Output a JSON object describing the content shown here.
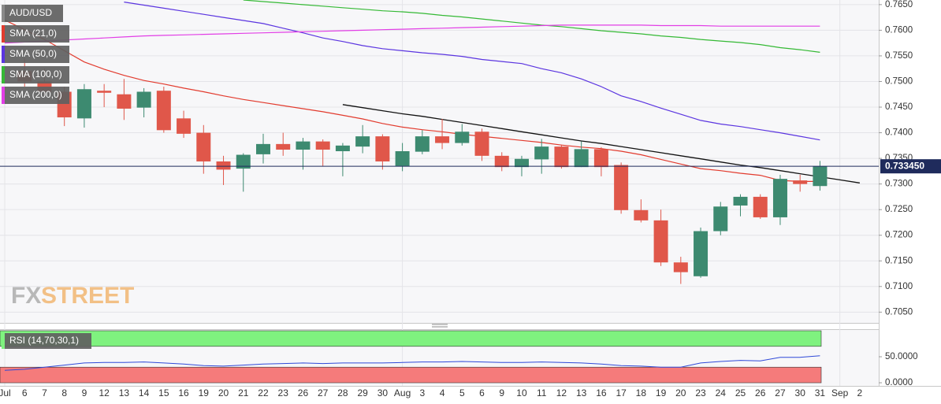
{
  "chart_data": {
    "type": "candlestick",
    "categories": [
      "Jul",
      "6",
      "7",
      "8",
      "9",
      "12",
      "13",
      "14",
      "15",
      "16",
      "19",
      "20",
      "21",
      "22",
      "23",
      "26",
      "27",
      "28",
      "29",
      "30",
      "Aug",
      "3",
      "4",
      "5",
      "6",
      "9",
      "10",
      "11",
      "12",
      "13",
      "16",
      "17",
      "18",
      "19",
      "20",
      "23",
      "24",
      "25",
      "26",
      "27",
      "30",
      "31",
      "Sep",
      "2"
    ],
    "ohlc": {
      "name": "AUD/USD",
      "up_color": "#3d8a70",
      "down_color": "#e0574a",
      "open": [
        null,
        0.752,
        0.75,
        0.748,
        0.7428,
        0.7482,
        0.7475,
        0.7449,
        0.7482,
        0.7428,
        0.74,
        0.7344,
        0.733,
        0.7358,
        0.7378,
        0.7367,
        0.7383,
        0.7364,
        0.7373,
        0.7393,
        0.7335,
        0.7363,
        0.7393,
        0.738,
        0.7402,
        0.7355,
        0.7333,
        0.7348,
        0.7373,
        0.7333,
        0.7368,
        0.7337,
        0.7249,
        0.7229,
        0.7147,
        0.712,
        0.7208,
        0.7258,
        0.7275,
        0.7235,
        0.7307,
        0.7296,
        null,
        null
      ],
      "high": [
        null,
        0.7545,
        0.7525,
        0.749,
        0.7495,
        0.7495,
        0.7505,
        0.7487,
        0.749,
        0.7443,
        0.7415,
        0.7355,
        0.736,
        0.7398,
        0.74,
        0.739,
        0.7387,
        0.738,
        0.7415,
        0.7397,
        0.738,
        0.7405,
        0.7427,
        0.7417,
        0.7408,
        0.7362,
        0.7355,
        0.7388,
        0.7377,
        0.7383,
        0.7372,
        0.7342,
        0.727,
        0.725,
        0.7158,
        0.7215,
        0.7265,
        0.728,
        0.728,
        0.7318,
        0.7318,
        0.7345,
        null,
        null
      ],
      "low": [
        null,
        0.749,
        0.747,
        0.7413,
        0.741,
        0.745,
        0.7425,
        0.743,
        0.74,
        0.739,
        0.732,
        0.7298,
        0.7285,
        0.734,
        0.7355,
        0.7328,
        0.7335,
        0.7315,
        0.736,
        0.7328,
        0.7325,
        0.7358,
        0.7368,
        0.7375,
        0.7345,
        0.7325,
        0.7315,
        0.732,
        0.733,
        0.7333,
        0.7315,
        0.7242,
        0.7225,
        0.714,
        0.7105,
        0.7117,
        0.72,
        0.7237,
        0.7232,
        0.722,
        0.7285,
        0.7287,
        null,
        null
      ],
      "close": [
        null,
        0.75,
        0.748,
        0.743,
        0.7485,
        0.7478,
        0.7447,
        0.748,
        0.7405,
        0.7398,
        0.7344,
        0.7328,
        0.7357,
        0.7378,
        0.7367,
        0.7383,
        0.7367,
        0.7375,
        0.7393,
        0.7344,
        0.7364,
        0.7393,
        0.738,
        0.7402,
        0.7355,
        0.7333,
        0.7349,
        0.7373,
        0.7333,
        0.7368,
        0.7333,
        0.7249,
        0.7229,
        0.7147,
        0.7128,
        0.7208,
        0.7256,
        0.7275,
        0.7235,
        0.731,
        0.73,
        0.7334,
        null,
        null
      ]
    },
    "series": [
      {
        "name": "SMA (21,0)",
        "color": "#e23b2e",
        "values": [
          0.762,
          0.7601,
          0.7582,
          0.756,
          0.7538,
          0.7524,
          0.7512,
          0.7502,
          0.7495,
          0.7487,
          0.748,
          0.7472,
          0.7465,
          0.7459,
          0.7453,
          0.7447,
          0.7441,
          0.7434,
          0.7427,
          0.7418,
          0.7411,
          0.7406,
          0.7402,
          0.7397,
          0.7393,
          0.7389,
          0.7385,
          0.7381,
          0.7376,
          0.7372,
          0.7369,
          0.7364,
          0.7357,
          0.7348,
          0.7339,
          0.733,
          0.7326,
          0.7321,
          0.7317,
          0.7307,
          0.7305,
          0.7305,
          null,
          null
        ]
      },
      {
        "name": "SMA (50,0)",
        "color": "#5b35e0",
        "values": [
          null,
          null,
          null,
          null,
          null,
          null,
          0.7655,
          0.7649,
          0.7643,
          0.7637,
          0.7631,
          0.7625,
          0.7619,
          0.7613,
          0.7604,
          0.7595,
          0.7585,
          0.7578,
          0.757,
          0.7564,
          0.756,
          0.7556,
          0.7553,
          0.7549,
          0.7543,
          0.7539,
          0.7535,
          0.7525,
          0.7517,
          0.7505,
          0.749,
          0.7472,
          0.7461,
          0.7448,
          0.7436,
          0.7424,
          0.7417,
          0.7412,
          0.7406,
          0.74,
          0.7393,
          0.7386,
          null,
          null
        ]
      },
      {
        "name": "SMA (100,0)",
        "color": "#35b935",
        "values": [
          null,
          null,
          null,
          null,
          null,
          null,
          null,
          null,
          null,
          null,
          null,
          null,
          0.7659,
          0.7656,
          0.7653,
          0.765,
          0.7647,
          0.7644,
          0.7641,
          0.7638,
          0.7636,
          0.7633,
          0.7629,
          0.7626,
          0.7622,
          0.7618,
          0.7614,
          0.761,
          0.7607,
          0.7603,
          0.7599,
          0.7596,
          0.7593,
          0.7589,
          0.7586,
          0.7582,
          0.7579,
          0.7576,
          0.7572,
          0.7566,
          0.7562,
          0.7557,
          null,
          null
        ]
      },
      {
        "name": "SMA (200,0)",
        "color": "#e23ee6",
        "values": [
          0.7575,
          0.7577,
          0.7579,
          0.7581,
          0.7583,
          0.7585,
          0.7587,
          0.7589,
          0.759,
          0.7591,
          0.7592,
          0.7593,
          0.7594,
          0.7595,
          0.7596,
          0.7597,
          0.7598,
          0.7599,
          0.76,
          0.7601,
          0.7602,
          0.7603,
          0.7604,
          0.7605,
          0.7606,
          0.7607,
          0.7608,
          0.7609,
          0.761,
          0.761,
          0.761,
          0.761,
          0.761,
          0.7609,
          0.7609,
          0.7609,
          0.7608,
          0.7608,
          0.7608,
          0.7608,
          0.7608,
          0.7608,
          null,
          null
        ]
      }
    ],
    "trendline": {
      "color": "#111111",
      "values": [
        null,
        null,
        null,
        null,
        null,
        null,
        null,
        null,
        null,
        null,
        null,
        null,
        null,
        null,
        null,
        null,
        null,
        0.7455,
        0.7449,
        0.7443,
        0.7437,
        0.7432,
        0.7426,
        0.742,
        0.7414,
        0.7408,
        0.7402,
        0.7396,
        0.739,
        0.7384,
        0.7379,
        0.7373,
        0.7367,
        0.7361,
        0.7355,
        0.7349,
        0.7343,
        0.7337,
        0.7332,
        0.7326,
        0.732,
        0.7314,
        0.7308,
        0.7302
      ]
    },
    "last_price": {
      "value": 0.73345,
      "label": "0.733450",
      "color": "#1f2b5c"
    },
    "ylim": [
      0.7029,
      0.7659
    ],
    "yticks": [
      {
        "value": 0.765,
        "label": "0.7650"
      },
      {
        "value": 0.76,
        "label": "0.7600"
      },
      {
        "value": 0.755,
        "label": "0.7550"
      },
      {
        "value": 0.75,
        "label": "0.7500"
      },
      {
        "value": 0.745,
        "label": "0.7450"
      },
      {
        "value": 0.74,
        "label": "0.7400"
      },
      {
        "value": 0.735,
        "label": "0.7350"
      },
      {
        "value": 0.73,
        "label": "0.7300"
      },
      {
        "value": 0.725,
        "label": "0.7250"
      },
      {
        "value": 0.72,
        "label": "0.7200"
      },
      {
        "value": 0.715,
        "label": "0.7150"
      },
      {
        "value": 0.71,
        "label": "0.7100"
      },
      {
        "value": 0.705,
        "label": "0.7050"
      }
    ],
    "grid": true,
    "watermark": [
      "FX",
      "STREET"
    ],
    "rsi": {
      "name": "RSI (14,70,30,1)",
      "color": "#2f49d8",
      "overbought": 70,
      "oversold": 30,
      "overbought_color": "#7ff27f",
      "oversold_color": "#f57b7b",
      "ylim": [
        -6,
        103
      ],
      "yticks": [
        {
          "value": 50,
          "label": "50.0000"
        },
        {
          "value": 0,
          "label": "0.0000"
        }
      ],
      "values": [
        24,
        26,
        30,
        34,
        38,
        39,
        39,
        40,
        38,
        36,
        33,
        32,
        34,
        36,
        37,
        38,
        37,
        38,
        38,
        38,
        39,
        40,
        40,
        41,
        40,
        39,
        39,
        40,
        39,
        38,
        36,
        33,
        32,
        30,
        30,
        38,
        41,
        43,
        42,
        49,
        49,
        52,
        null,
        null
      ]
    }
  }
}
